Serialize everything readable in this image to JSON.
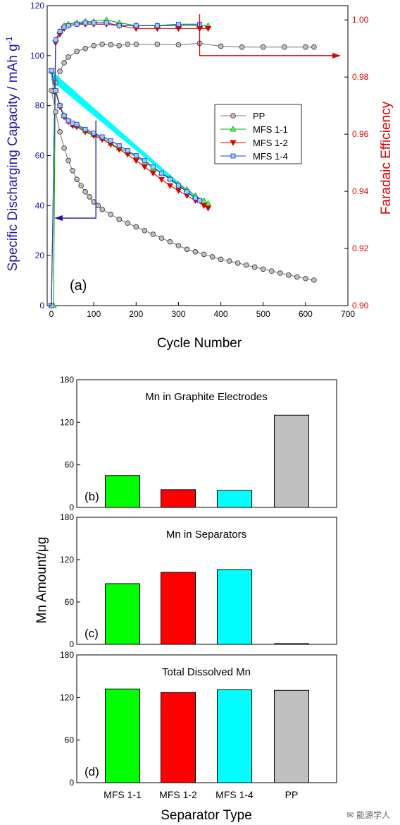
{
  "colors": {
    "pp": "#808080",
    "pp_fill": "#c0c0c0",
    "mfs11": "#00b000",
    "mfs11_fill": "#66ee66",
    "mfs12": "#e00000",
    "mfs14": "#1a3ccc",
    "mfs14_fill": "#99ccff",
    "band": "#00ffff",
    "left_axis": "#1a1aa8",
    "right_axis": "#e00000",
    "bar_green": "#00ff00",
    "bar_red": "#ff0000",
    "bar_cyan": "#00ffff",
    "bar_gray": "#c0c0c0"
  },
  "chart_data": [
    {
      "type": "line",
      "panel_label": "(a)",
      "xlabel": "Cycle Number",
      "ylabel_left": "Specific Discharging Capacity / mAh g",
      "ylabel_left_sup": "-1",
      "ylabel_right": "Faradaic Efficiency",
      "xlim": [
        -10,
        700
      ],
      "ylim_left": [
        0,
        120
      ],
      "ylim_right": [
        0.9,
        1.005
      ],
      "xticks": [
        "0",
        "100",
        "200",
        "300",
        "400",
        "500",
        "600",
        "700"
      ],
      "yticks_left": [
        "0",
        "20",
        "40",
        "60",
        "80",
        "100",
        "120"
      ],
      "yticks_right": [
        "0.90",
        "0.92",
        "0.94",
        "0.96",
        "0.98",
        "1.00"
      ],
      "legend": [
        "PP",
        "MFS 1-1",
        "MFS 1-2",
        "MFS 1-4"
      ],
      "legend_position": "center-right",
      "capacity_series": [
        {
          "name": "PP",
          "x": [
            0,
            10,
            20,
            30,
            40,
            50,
            60,
            70,
            80,
            90,
            100,
            110,
            120,
            140,
            160,
            180,
            200,
            220,
            240,
            260,
            280,
            300,
            320,
            340,
            360,
            380,
            400,
            420,
            440,
            460,
            480,
            500,
            520,
            540,
            560,
            580,
            600,
            620
          ],
          "y": [
            86,
            77.5,
            69.5,
            63,
            58,
            54,
            50.5,
            48,
            45.5,
            43.5,
            41.5,
            40,
            38.5,
            36.5,
            34.5,
            33,
            31.5,
            30,
            28.5,
            27,
            25.5,
            24,
            22.5,
            21.5,
            20.5,
            19.5,
            18.5,
            17.8,
            17,
            16.2,
            15.4,
            14.6,
            13.8,
            13,
            12.2,
            11.5,
            10.8,
            10.2
          ]
        },
        {
          "name": "MFS 1-1",
          "x": [
            0,
            10,
            20,
            30,
            40,
            50,
            60,
            80,
            100,
            120,
            140,
            160,
            180,
            200,
            220,
            240,
            260,
            280,
            300,
            320,
            340,
            360,
            370
          ],
          "y": [
            94,
            86,
            80,
            76,
            74,
            72.5,
            72,
            70,
            68.5,
            67,
            65,
            63,
            61.5,
            59.5,
            57.5,
            55,
            53,
            51,
            48.5,
            46.5,
            44,
            42,
            40.8
          ]
        },
        {
          "name": "MFS 1-2",
          "x": [
            0,
            10,
            20,
            30,
            40,
            50,
            60,
            80,
            100,
            120,
            140,
            160,
            180,
            200,
            220,
            240,
            260,
            280,
            300,
            320,
            340,
            360,
            370
          ],
          "y": [
            94,
            85.5,
            79.5,
            75.5,
            73.5,
            72,
            71.5,
            69.5,
            68,
            66.5,
            64.5,
            62.5,
            60.5,
            58,
            55.5,
            53,
            50.5,
            48,
            46,
            44,
            42,
            40,
            39
          ]
        },
        {
          "name": "MFS 1-4",
          "x": [
            0,
            10,
            20,
            30,
            40,
            50,
            60,
            80,
            100,
            120,
            140,
            160,
            180,
            200,
            220,
            240,
            260,
            280,
            300,
            320,
            340,
            350
          ],
          "y": [
            94,
            86,
            80,
            76,
            74,
            73,
            72.5,
            70.5,
            69,
            67.5,
            66,
            64,
            62,
            60,
            58,
            55.5,
            53,
            50.5,
            48,
            45.5,
            43,
            42
          ]
        }
      ],
      "efficiency_series": [
        {
          "name": "PP",
          "x": [
            0,
            5,
            10,
            20,
            30,
            40,
            60,
            80,
            100,
            120,
            140,
            160,
            180,
            200,
            250,
            300,
            350,
            400,
            450,
            500,
            550,
            600,
            620
          ],
          "y": [
            0.982,
            0.975,
            0.978,
            0.982,
            0.985,
            0.987,
            0.989,
            0.99,
            0.991,
            0.9915,
            0.9913,
            0.991,
            0.9915,
            0.9915,
            0.9915,
            0.9913,
            0.9918,
            0.9908,
            0.9905,
            0.9905,
            0.9905,
            0.9905,
            0.9905
          ]
        },
        {
          "name": "MFS 1-1",
          "x": [
            0,
            5,
            10,
            20,
            30,
            40,
            60,
            80,
            100,
            130,
            160,
            200,
            250,
            300,
            350,
            370
          ],
          "y": [
            0.9,
            0.9,
            0.993,
            0.996,
            0.998,
            0.9985,
            0.999,
            0.9995,
            0.9995,
            1.0,
            0.999,
            0.998,
            0.998,
            0.998,
            0.998,
            0.998
          ]
        },
        {
          "name": "MFS 1-2",
          "x": [
            0,
            10,
            20,
            30,
            40,
            60,
            80,
            100,
            130,
            160,
            200,
            250,
            300,
            350,
            370
          ],
          "y": [
            0.9,
            0.992,
            0.995,
            0.997,
            0.998,
            0.9985,
            0.9985,
            0.9985,
            0.9985,
            0.998,
            0.997,
            0.997,
            0.997,
            0.997,
            0.997
          ]
        },
        {
          "name": "MFS 1-4",
          "x": [
            0,
            10,
            20,
            30,
            40,
            60,
            80,
            100,
            130,
            160,
            200,
            250,
            300,
            350
          ],
          "y": [
            0.9,
            0.993,
            0.996,
            0.9975,
            0.998,
            0.9985,
            0.999,
            0.999,
            0.999,
            0.998,
            0.998,
            0.998,
            0.9985,
            0.9985
          ]
        }
      ],
      "band": {
        "x_start": 0,
        "x_end": 350,
        "y_start": 94,
        "y_end_upper": 42,
        "y_end_lower": 41
      }
    },
    {
      "type": "bar",
      "panel_label": "(b)",
      "title": "Mn in Graphite Electrodes",
      "categories": [
        "MFS 1-1",
        "MFS 1-2",
        "MFS 1-4",
        "PP"
      ],
      "values": [
        45,
        25,
        24,
        130
      ],
      "ylim": [
        0,
        180
      ],
      "yticks": [
        "0",
        "60",
        "120",
        "180"
      ]
    },
    {
      "type": "bar",
      "panel_label": "(c)",
      "title": "Mn in Separators",
      "categories": [
        "MFS 1-1",
        "MFS 1-2",
        "MFS 1-4",
        "PP"
      ],
      "values": [
        86,
        102,
        106,
        1
      ],
      "ylim": [
        0,
        180
      ],
      "yticks": [
        "0",
        "60",
        "120",
        "180"
      ],
      "ylabel": "Mn Amount/μg"
    },
    {
      "type": "bar",
      "panel_label": "(d)",
      "title": "Total Dissolved Mn",
      "categories": [
        "MFS 1-1",
        "MFS 1-2",
        "MFS 1-4",
        "PP"
      ],
      "values": [
        132,
        127,
        131,
        130
      ],
      "ylim": [
        0,
        180
      ],
      "yticks": [
        "0",
        "60",
        "120",
        "180"
      ],
      "xlabel": "Separator Type"
    }
  ],
  "watermark": "能源学人"
}
